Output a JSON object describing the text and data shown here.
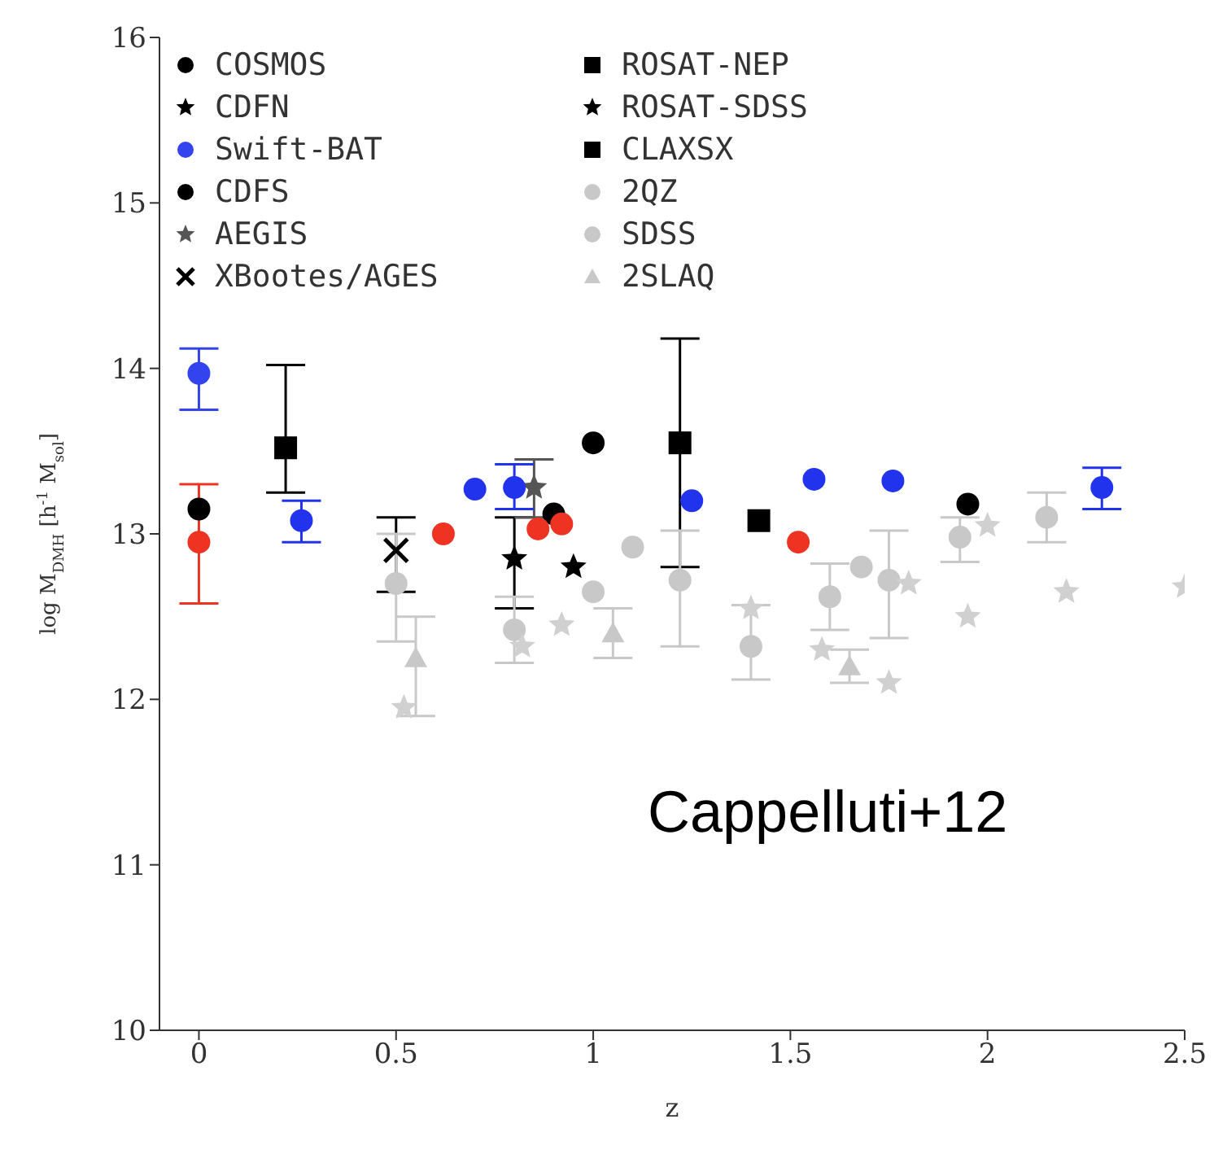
{
  "chart_data": {
    "type": "scatter",
    "xlabel": "z",
    "ylabel": "log M$_{DMH}$ [h$^{-1}$ M$_{sol}$]",
    "xlim": [
      -0.1,
      2.5
    ],
    "ylim": [
      10,
      16
    ],
    "xticks": [
      0,
      0.5,
      1,
      1.5,
      2,
      2.5
    ],
    "yticks": [
      10,
      11,
      12,
      13,
      14,
      15,
      16
    ],
    "legend": "top left",
    "annotations": [
      "Cappelluti+12"
    ],
    "series": [
      {
        "name": "COSMOS",
        "color": "#000000",
        "marker": "circle",
        "x": [
          0.9,
          1.0,
          1.95
        ],
        "values": [
          13.12,
          13.55,
          13.18
        ]
      },
      {
        "name": "CDFN",
        "color": "#000000",
        "marker": "star",
        "x": [
          0.8
        ],
        "values": [
          12.85
        ],
        "errors": [
          [
            12.55,
            13.1
          ]
        ]
      },
      {
        "name": "Swift-BAT",
        "color": "#3344ee",
        "marker": "circle",
        "x": [
          0
        ],
        "values": [
          13.97
        ],
        "errors": [
          [
            13.75,
            14.12
          ]
        ]
      },
      {
        "name": "CDFS",
        "color": "#000000",
        "marker": "circle",
        "x": [
          0
        ],
        "values": [
          13.15
        ]
      },
      {
        "name": "AEGIS",
        "color": "#555555",
        "marker": "star",
        "x": [
          0.85
        ],
        "values": [
          13.28
        ],
        "errors": [
          [
            13.1,
            13.45
          ]
        ]
      },
      {
        "name": "XBootes/AGES",
        "color": "#000000",
        "marker": "cross",
        "x": [
          0.5
        ],
        "values": [
          12.9
        ],
        "errors": [
          [
            12.65,
            13.1
          ]
        ]
      },
      {
        "name": "ROSAT-NEP",
        "color": "#000000",
        "marker": "square",
        "x": [
          0.22
        ],
        "values": [
          13.52
        ],
        "errors": [
          [
            13.25,
            14.02
          ]
        ]
      },
      {
        "name": "ROSAT-SDSS",
        "color": "#000000",
        "marker": "star",
        "x": [
          0.95
        ],
        "values": [
          12.8
        ]
      },
      {
        "name": "CLAXSX",
        "color": "#000000",
        "marker": "square",
        "x": [
          1.22,
          1.42
        ],
        "values": [
          13.55,
          13.08
        ],
        "errors": [
          [
            12.8,
            14.18
          ],
          null
        ]
      },
      {
        "name": "2QZ",
        "color": "#c8c8c8",
        "marker": "circle",
        "x": [
          0.5,
          0.8,
          1.0,
          1.1,
          1.22,
          1.4,
          1.6,
          1.68,
          1.75
        ],
        "values": [
          12.7,
          12.42,
          12.65,
          12.92,
          12.72,
          12.32,
          12.62,
          12.8,
          12.72
        ],
        "errors": [
          [
            12.35,
            13.0
          ],
          [
            12.22,
            12.62
          ],
          null,
          null,
          [
            12.32,
            13.02
          ],
          [
            12.12,
            12.57
          ],
          [
            12.42,
            12.82
          ],
          null,
          [
            12.37,
            13.02
          ]
        ]
      },
      {
        "name": "SDSS",
        "color": "#c8c8c8",
        "marker": "circle",
        "x": [
          1.93,
          2.15
        ],
        "values": [
          12.98,
          13.1
        ],
        "errors": [
          [
            12.83,
            13.1
          ],
          [
            12.95,
            13.25
          ]
        ]
      },
      {
        "name": "2SLAQ",
        "color": "#c8c8c8",
        "marker": "triangle",
        "x": [
          0.55,
          1.05,
          1.65
        ],
        "values": [
          12.25,
          12.4,
          12.2
        ],
        "errors": [
          [
            11.9,
            12.5
          ],
          [
            12.25,
            12.55
          ],
          [
            12.1,
            12.3
          ]
        ]
      },
      {
        "color": "#d0d0d0",
        "marker": "star",
        "x": [
          0.52,
          0.82,
          0.92,
          1.4,
          1.58,
          1.75,
          1.8,
          1.95,
          2.0,
          2.2,
          2.5
        ],
        "values": [
          11.95,
          12.32,
          12.45,
          12.55,
          12.3,
          12.1,
          12.7,
          12.5,
          13.05,
          12.65,
          12.68
        ]
      },
      {
        "color": "#2233ee",
        "marker": "circle",
        "x": [
          0.26,
          0.7,
          0.8,
          1.25,
          1.56,
          1.76,
          2.29
        ],
        "values": [
          13.08,
          13.27,
          13.28,
          13.2,
          13.33,
          13.32,
          13.28
        ],
        "errors": [
          [
            12.95,
            13.2
          ],
          null,
          [
            13.15,
            13.42
          ],
          null,
          null,
          null,
          [
            13.15,
            13.4
          ]
        ]
      },
      {
        "color": "#ee3322",
        "marker": "circle",
        "x": [
          0,
          0.62,
          0.86,
          0.92,
          1.52
        ],
        "values": [
          12.95,
          13.0,
          13.03,
          13.06,
          12.95
        ],
        "errors": [
          [
            12.58,
            13.3
          ],
          null,
          null,
          null,
          null
        ]
      }
    ]
  }
}
